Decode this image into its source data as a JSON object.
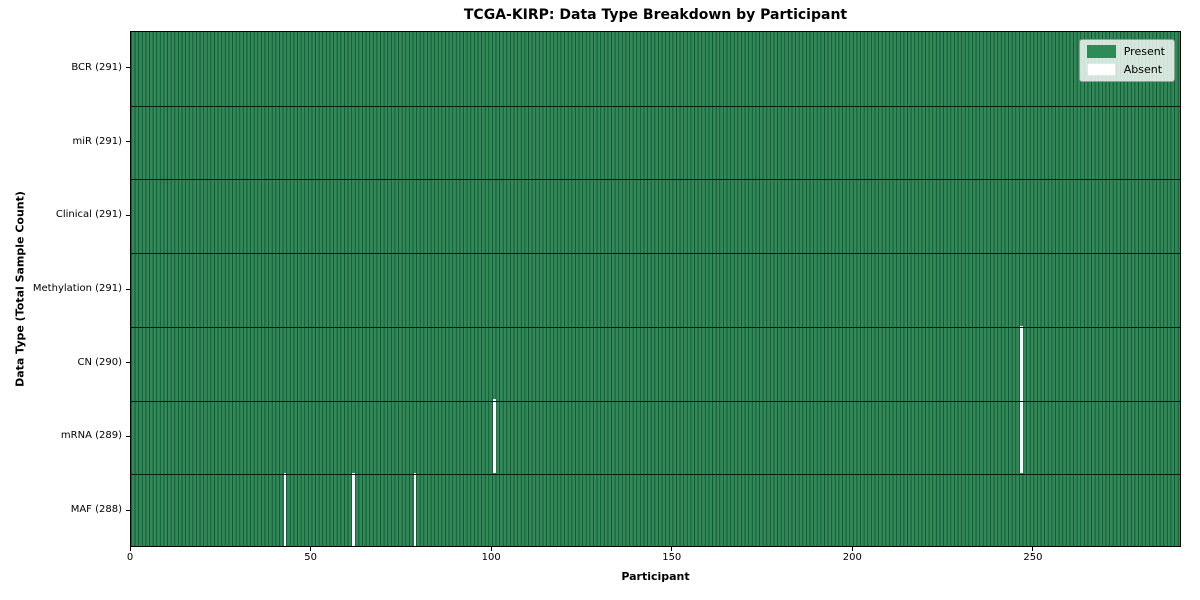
{
  "chart_data": {
    "type": "heatmap",
    "title": "TCGA-KIRP: Data Type Breakdown by Participant",
    "xlabel": "Participant",
    "ylabel": "Data Type (Total Sample Count)",
    "n_participants": 291,
    "xlim": [
      0,
      291
    ],
    "x_ticks": [
      0,
      50,
      100,
      150,
      200,
      250
    ],
    "rows": [
      {
        "label": "BCR (291)",
        "data_type": "BCR",
        "present_count": 291,
        "absent_participants": []
      },
      {
        "label": "miR (291)",
        "data_type": "miR",
        "present_count": 291,
        "absent_participants": []
      },
      {
        "label": "Clinical (291)",
        "data_type": "Clinical",
        "present_count": 291,
        "absent_participants": []
      },
      {
        "label": "Methylation (291)",
        "data_type": "Methylation",
        "present_count": 291,
        "absent_participants": []
      },
      {
        "label": "CN (290)",
        "data_type": "CN",
        "present_count": 290,
        "absent_participants": [
          246
        ]
      },
      {
        "label": "mRNA (289)",
        "data_type": "mRNA",
        "present_count": 289,
        "absent_participants": [
          100,
          246
        ]
      },
      {
        "label": "MAF (288)",
        "data_type": "MAF",
        "present_count": 288,
        "absent_participants": [
          42,
          61,
          78
        ]
      }
    ],
    "legend": [
      {
        "label": "Present",
        "color": "#2e8b57"
      },
      {
        "label": "Absent",
        "color": "#ffffff"
      }
    ],
    "colors": {
      "present": "#2e8b57",
      "absent": "#ffffff",
      "cell_edge": "#1e4f37",
      "row_separator": "#0a1a10",
      "plot_border": "#000000"
    },
    "grid": false,
    "legend_position": "upper right"
  }
}
